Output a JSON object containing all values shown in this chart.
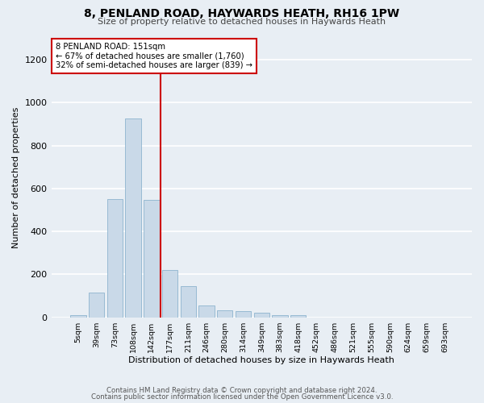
{
  "title": "8, PENLAND ROAD, HAYWARDS HEATH, RH16 1PW",
  "subtitle": "Size of property relative to detached houses in Haywards Heath",
  "xlabel": "Distribution of detached houses by size in Haywards Heath",
  "ylabel": "Number of detached properties",
  "footer1": "Contains HM Land Registry data © Crown copyright and database right 2024.",
  "footer2": "Contains public sector information licensed under the Open Government Licence v3.0.",
  "categories": [
    "5sqm",
    "39sqm",
    "73sqm",
    "108sqm",
    "142sqm",
    "177sqm",
    "211sqm",
    "246sqm",
    "280sqm",
    "314sqm",
    "349sqm",
    "383sqm",
    "418sqm",
    "452sqm",
    "486sqm",
    "521sqm",
    "555sqm",
    "590sqm",
    "624sqm",
    "659sqm",
    "693sqm"
  ],
  "values": [
    10,
    115,
    550,
    925,
    545,
    220,
    145,
    53,
    33,
    30,
    22,
    10,
    10,
    0,
    0,
    0,
    0,
    0,
    0,
    0,
    0
  ],
  "bar_color": "#c9d9e8",
  "bar_edge_color": "#7eaac8",
  "background_color": "#e8eef4",
  "grid_color": "#ffffff",
  "annotation_line1": "8 PENLAND ROAD: 151sqm",
  "annotation_line2": "← 67% of detached houses are smaller (1,760)",
  "annotation_line3": "32% of semi-detached houses are larger (839) →",
  "annotation_box_color": "#ffffff",
  "annotation_box_edge_color": "#cc0000",
  "vline_x": 4.5,
  "vline_color": "#cc0000",
  "ylim": [
    0,
    1300
  ],
  "yticks": [
    0,
    200,
    400,
    600,
    800,
    1000,
    1200
  ]
}
